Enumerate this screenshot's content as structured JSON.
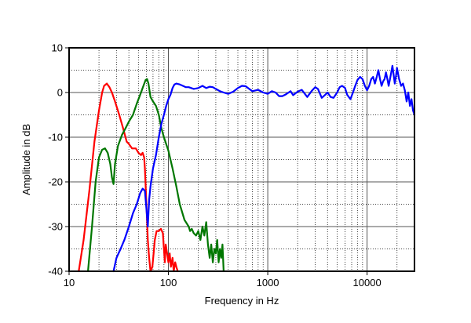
{
  "chart_data": {
    "type": "line",
    "xlabel": "Frequency in Hz",
    "ylabel": "Amplitude in dB",
    "xscale": "log",
    "xlim": [
      10,
      30000
    ],
    "ylim": [
      -40,
      10
    ],
    "grid": true,
    "x_ticks": [
      {
        "value": 10,
        "label": "10"
      },
      {
        "value": 100,
        "label": "100"
      },
      {
        "value": 1000,
        "label": "1000"
      },
      {
        "value": 10000,
        "label": "10000"
      }
    ],
    "y_ticks": [
      {
        "value": 10,
        "label": "10"
      },
      {
        "value": 0,
        "label": "0"
      },
      {
        "value": -10,
        "label": "-10"
      },
      {
        "value": -20,
        "label": "-20"
      },
      {
        "value": -30,
        "label": "-30"
      },
      {
        "value": -40,
        "label": "-40"
      }
    ],
    "series": [
      {
        "color": "#ff0000",
        "points": [
          [
            12.5,
            -40
          ],
          [
            14,
            -33
          ],
          [
            16,
            -22
          ],
          [
            18,
            -11
          ],
          [
            20,
            -4
          ],
          [
            21.5,
            0
          ],
          [
            22.5,
            1.5
          ],
          [
            24,
            2
          ],
          [
            25.5,
            1.2
          ],
          [
            27,
            0
          ],
          [
            29,
            -2
          ],
          [
            32,
            -5
          ],
          [
            35,
            -8
          ],
          [
            38,
            -11
          ],
          [
            40,
            -11.5
          ],
          [
            43,
            -12.5
          ],
          [
            47,
            -12.5
          ],
          [
            50,
            -13.5
          ],
          [
            53,
            -14
          ],
          [
            55,
            -13.5
          ],
          [
            57,
            -14.5
          ],
          [
            58,
            -17
          ],
          [
            60,
            -25
          ],
          [
            62,
            -33
          ],
          [
            64,
            -37
          ],
          [
            66,
            -40
          ],
          [
            69,
            -39
          ],
          [
            71,
            -36
          ],
          [
            73,
            -33
          ],
          [
            76,
            -31
          ],
          [
            80,
            -31
          ],
          [
            84,
            -30.5
          ],
          [
            88,
            -31.5
          ],
          [
            90,
            -35
          ],
          [
            92,
            -38
          ],
          [
            94,
            -34
          ],
          [
            97,
            -36
          ],
          [
            100,
            -38
          ],
          [
            103,
            -36
          ],
          [
            106,
            -39
          ],
          [
            110,
            -37
          ],
          [
            113,
            -40
          ],
          [
            117,
            -38
          ],
          [
            120,
            -39
          ],
          [
            124,
            -40
          ]
        ]
      },
      {
        "color": "#007700",
        "points": [
          [
            15.5,
            -40
          ],
          [
            17,
            -30
          ],
          [
            18.5,
            -20
          ],
          [
            20,
            -14.5
          ],
          [
            21.5,
            -12.8
          ],
          [
            23,
            -12.5
          ],
          [
            24.5,
            -13.5
          ],
          [
            26,
            -16
          ],
          [
            27,
            -19
          ],
          [
            28,
            -20.5
          ],
          [
            29,
            -16
          ],
          [
            31,
            -12
          ],
          [
            34,
            -9.5
          ],
          [
            37,
            -8
          ],
          [
            40,
            -6.5
          ],
          [
            44,
            -5
          ],
          [
            48,
            -2.5
          ],
          [
            52,
            -0.5
          ],
          [
            56,
            1.5
          ],
          [
            59,
            2.8
          ],
          [
            61,
            3
          ],
          [
            63,
            2
          ],
          [
            66,
            -1
          ],
          [
            70,
            -2
          ],
          [
            75,
            -3
          ],
          [
            80,
            -5
          ],
          [
            85,
            -8
          ],
          [
            90,
            -10
          ],
          [
            100,
            -13
          ],
          [
            110,
            -17
          ],
          [
            120,
            -21
          ],
          [
            130,
            -25
          ],
          [
            145,
            -28.5
          ],
          [
            160,
            -30
          ],
          [
            165,
            -31
          ],
          [
            172,
            -30.5
          ],
          [
            180,
            -31.5
          ],
          [
            190,
            -32
          ],
          [
            200,
            -31
          ],
          [
            210,
            -33
          ],
          [
            220,
            -30
          ],
          [
            230,
            -32
          ],
          [
            240,
            -29
          ],
          [
            250,
            -34
          ],
          [
            260,
            -37
          ],
          [
            270,
            -34
          ],
          [
            280,
            -38
          ],
          [
            290,
            -35
          ],
          [
            300,
            -36
          ],
          [
            310,
            -33
          ],
          [
            320,
            -38
          ],
          [
            330,
            -35
          ],
          [
            340,
            -37
          ],
          [
            350,
            -34
          ],
          [
            360,
            -40
          ]
        ]
      },
      {
        "color": "#0000ff",
        "points": [
          [
            28,
            -40
          ],
          [
            30,
            -37
          ],
          [
            33,
            -35
          ],
          [
            36,
            -33
          ],
          [
            40,
            -30
          ],
          [
            44,
            -27
          ],
          [
            48,
            -25
          ],
          [
            52,
            -22.5
          ],
          [
            55,
            -21.5
          ],
          [
            58,
            -22
          ],
          [
            60,
            -26
          ],
          [
            62,
            -30
          ],
          [
            64,
            -24
          ],
          [
            66,
            -21
          ],
          [
            70,
            -17
          ],
          [
            75,
            -14
          ],
          [
            80,
            -10
          ],
          [
            85,
            -7
          ],
          [
            90,
            -5
          ],
          [
            95,
            -3
          ],
          [
            100,
            -1.5
          ],
          [
            105,
            -0.5
          ],
          [
            110,
            1
          ],
          [
            115,
            1.8
          ],
          [
            120,
            2
          ],
          [
            130,
            1.8
          ],
          [
            140,
            1.5
          ],
          [
            150,
            1.2
          ],
          [
            160,
            1.2
          ],
          [
            180,
            0.8
          ],
          [
            200,
            1
          ],
          [
            220,
            1.5
          ],
          [
            240,
            1
          ],
          [
            260,
            1.3
          ],
          [
            280,
            1.2
          ],
          [
            300,
            0.8
          ],
          [
            330,
            0.3
          ],
          [
            360,
            0
          ],
          [
            400,
            -0.3
          ],
          [
            450,
            0.2
          ],
          [
            500,
            1
          ],
          [
            550,
            1.5
          ],
          [
            600,
            1.4
          ],
          [
            650,
            0.8
          ],
          [
            700,
            0.3
          ],
          [
            800,
            0.6
          ],
          [
            900,
            0
          ],
          [
            1000,
            -0.3
          ],
          [
            1100,
            0.3
          ],
          [
            1200,
            0
          ],
          [
            1300,
            -0.8
          ],
          [
            1400,
            -0.8
          ],
          [
            1500,
            -0.5
          ],
          [
            1700,
            0.3
          ],
          [
            1800,
            -0.6
          ],
          [
            2000,
            0.2
          ],
          [
            2200,
            0.6
          ],
          [
            2500,
            -1
          ],
          [
            2800,
            0.5
          ],
          [
            3000,
            1.2
          ],
          [
            3200,
            0.8
          ],
          [
            3500,
            -1.2
          ],
          [
            3800,
            -0.5
          ],
          [
            4000,
            0
          ],
          [
            4300,
            -1
          ],
          [
            4600,
            -1.2
          ],
          [
            5000,
            0
          ],
          [
            5300,
            1.2
          ],
          [
            5600,
            1.5
          ],
          [
            6000,
            1
          ],
          [
            6300,
            -0.5
          ],
          [
            6800,
            -1.5
          ],
          [
            7200,
            0
          ],
          [
            7600,
            1.5
          ],
          [
            8000,
            2.8
          ],
          [
            8500,
            3.5
          ],
          [
            9000,
            3
          ],
          [
            9500,
            1.5
          ],
          [
            10000,
            0.5
          ],
          [
            10500,
            1.5
          ],
          [
            11000,
            3
          ],
          [
            11500,
            3.5
          ],
          [
            12000,
            2
          ],
          [
            12500,
            3.5
          ],
          [
            13000,
            5
          ],
          [
            13500,
            3
          ],
          [
            14000,
            1.5
          ],
          [
            14500,
            2.5
          ],
          [
            15000,
            3
          ],
          [
            15500,
            4.5
          ],
          [
            16000,
            3
          ],
          [
            16500,
            1.5
          ],
          [
            17000,
            3
          ],
          [
            17500,
            4.5
          ],
          [
            18000,
            6
          ],
          [
            18500,
            4
          ],
          [
            19000,
            2
          ],
          [
            19500,
            3.5
          ],
          [
            20000,
            5.5
          ],
          [
            21000,
            3
          ],
          [
            22000,
            1.5
          ],
          [
            23000,
            2
          ],
          [
            24000,
            0.5
          ],
          [
            25000,
            -2
          ],
          [
            26000,
            0
          ],
          [
            27000,
            -3
          ],
          [
            28000,
            -1.5
          ],
          [
            29000,
            -4
          ],
          [
            30000,
            -5
          ]
        ]
      }
    ]
  }
}
